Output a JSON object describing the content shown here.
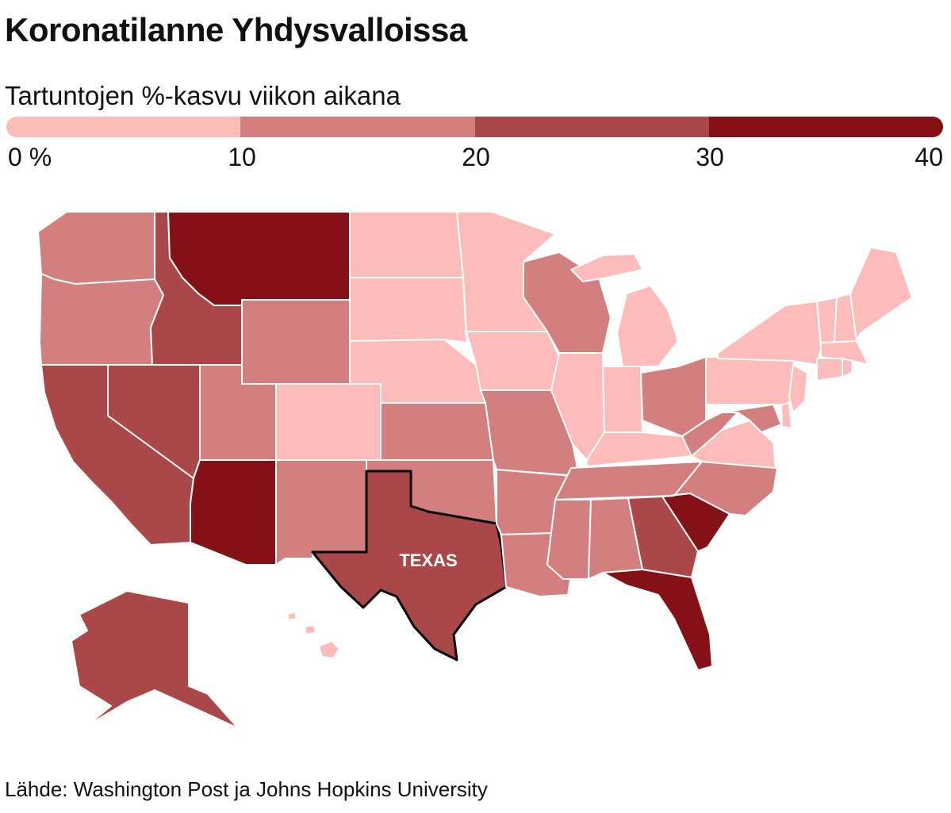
{
  "title": "Koronatilanne Yhdysvalloissa",
  "legend": {
    "title": "Tartuntojen %-kasvu viikon aikana",
    "ticks": [
      "0 %",
      "10",
      "20",
      "30",
      "40"
    ],
    "classes": [
      {
        "min": 0,
        "max": 10,
        "color": "#fdbcb9"
      },
      {
        "min": 10,
        "max": 20,
        "color": "#d37f7f"
      },
      {
        "min": 20,
        "max": 30,
        "color": "#aa4749"
      },
      {
        "min": 30,
        "max": 40,
        "color": "#831115"
      }
    ]
  },
  "highlight": {
    "state": "texas",
    "label": "TEXAS"
  },
  "source": "Lähde: Washington Post ja Johns Hopkins University",
  "states": {
    "washington": 1,
    "oregon": 1,
    "california": 2,
    "nevada": 2,
    "idaho": 2,
    "montana": 3,
    "wyoming": 1,
    "utah": 1,
    "arizona": 3,
    "colorado": 0,
    "new-mexico": 1,
    "north-dakota": 0,
    "south-dakota": 0,
    "nebraska": 0,
    "kansas": 1,
    "oklahoma": 1,
    "texas": 2,
    "minnesota": 0,
    "iowa": 0,
    "missouri": 1,
    "arkansas": 1,
    "louisiana": 1,
    "wisconsin": 1,
    "illinois": 0,
    "michigan": 0,
    "indiana": 0,
    "ohio": 1,
    "kentucky": 0,
    "tennessee": 1,
    "mississippi": 1,
    "alabama": 1,
    "georgia": 2,
    "florida": 3,
    "south-carolina": 3,
    "north-carolina": 1,
    "virginia": 0,
    "west-virginia": 1,
    "maryland": 1,
    "delaware": 0,
    "new-jersey": 0,
    "pennsylvania": 0,
    "new-york": 0,
    "connecticut": 0,
    "rhode-island": 0,
    "massachusetts": 0,
    "vermont": 0,
    "new-hampshire": 0,
    "maine": 0,
    "alaska": 2,
    "hawaii": 0
  }
}
